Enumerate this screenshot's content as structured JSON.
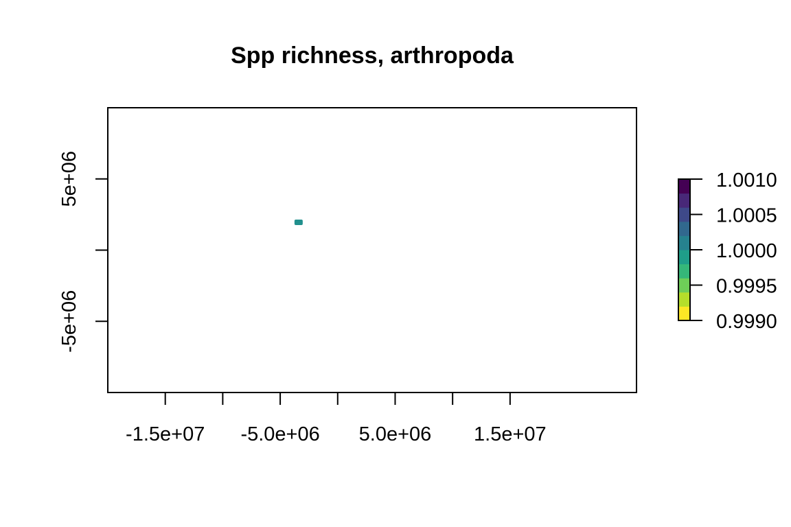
{
  "chart_data": {
    "type": "heatmap",
    "title": "Spp richness, arthropoda",
    "xlabel": "",
    "ylabel": "",
    "xlim": [
      -20000000.0,
      26000000.0
    ],
    "ylim": [
      -10000000.0,
      10000000.0
    ],
    "x_ticks": [
      {
        "value": -15000000.0,
        "label": "-1.5e+07"
      },
      {
        "value": -10000000.0,
        "label": ""
      },
      {
        "value": -5000000.0,
        "label": "-5.0e+06"
      },
      {
        "value": 0,
        "label": ""
      },
      {
        "value": 5000000.0,
        "label": "5.0e+06"
      },
      {
        "value": 10000000.0,
        "label": ""
      },
      {
        "value": 15000000.0,
        "label": "1.5e+07"
      }
    ],
    "y_ticks": [
      {
        "value": -5000000.0,
        "label": "-5e+06"
      },
      {
        "value": 0,
        "label": ""
      },
      {
        "value": 5000000.0,
        "label": "5e+06"
      }
    ],
    "grid": false,
    "legend": {
      "type": "colorbar",
      "placement": "right",
      "range": [
        0.999,
        1.001
      ],
      "ticks": [
        "1.0010",
        "1.0005",
        "1.0000",
        "0.9995",
        "0.9990"
      ],
      "palette": [
        "#fde725",
        "#b5de2b",
        "#6ece58",
        "#35b779",
        "#1f9e89",
        "#26828e",
        "#31688e",
        "#3e4989",
        "#482878",
        "#440154"
      ]
    },
    "cells": [
      {
        "x": -3400000.0,
        "y": 1950000.0,
        "value": 1.0,
        "color": "#21908d"
      }
    ]
  }
}
